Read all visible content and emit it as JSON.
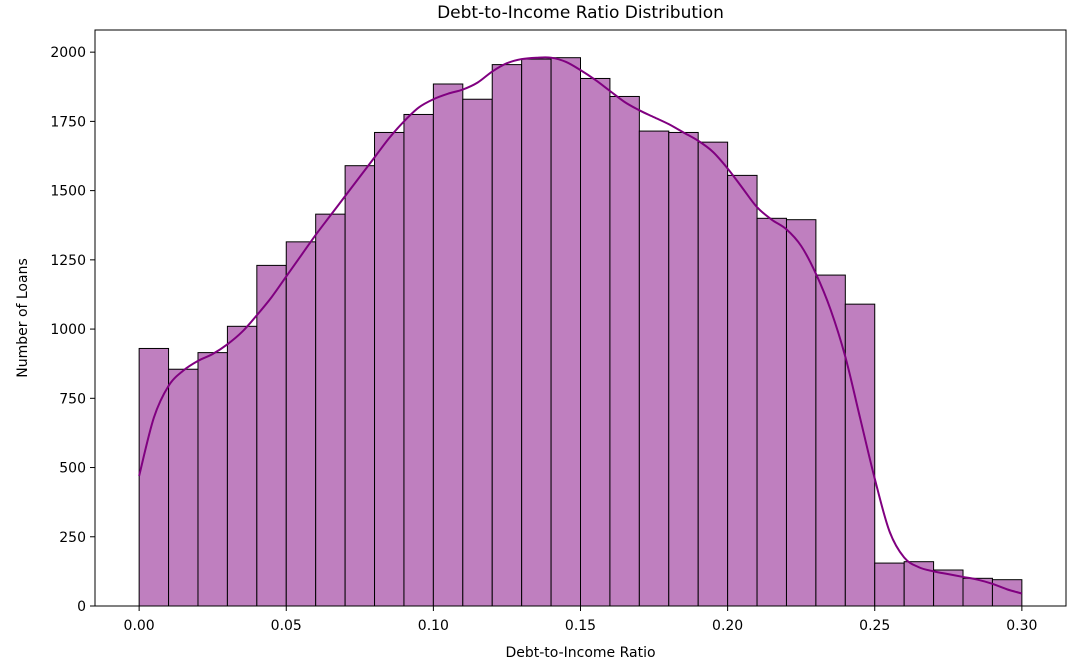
{
  "chart_data": {
    "type": "bar",
    "title": "Debt-to-Income Ratio Distribution",
    "xlabel": "Debt-to-Income Ratio",
    "ylabel": "Number of Loans",
    "xlim": [
      -0.015,
      0.315
    ],
    "ylim": [
      0,
      2080
    ],
    "xticks": [
      0.0,
      0.05,
      0.1,
      0.15,
      0.2,
      0.25,
      0.3
    ],
    "xtick_labels": [
      "0.00",
      "0.05",
      "0.10",
      "0.15",
      "0.20",
      "0.25",
      "0.30"
    ],
    "yticks": [
      0,
      250,
      500,
      750,
      1000,
      1250,
      1500,
      1750,
      2000
    ],
    "ytick_labels": [
      "0",
      "250",
      "500",
      "750",
      "1000",
      "1250",
      "1500",
      "1750",
      "2000"
    ],
    "grid": false,
    "bar_fill": "#bf7fbf",
    "bar_edge": "#000000",
    "kde_color": "#800080",
    "bins": [
      {
        "x0": 0.0,
        "x1": 0.01,
        "count": 930
      },
      {
        "x0": 0.01,
        "x1": 0.02,
        "count": 855
      },
      {
        "x0": 0.02,
        "x1": 0.03,
        "count": 915
      },
      {
        "x0": 0.03,
        "x1": 0.04,
        "count": 1010
      },
      {
        "x0": 0.04,
        "x1": 0.05,
        "count": 1230
      },
      {
        "x0": 0.05,
        "x1": 0.06,
        "count": 1315
      },
      {
        "x0": 0.06,
        "x1": 0.07,
        "count": 1415
      },
      {
        "x0": 0.07,
        "x1": 0.08,
        "count": 1590
      },
      {
        "x0": 0.08,
        "x1": 0.09,
        "count": 1710
      },
      {
        "x0": 0.09,
        "x1": 0.1,
        "count": 1775
      },
      {
        "x0": 0.1,
        "x1": 0.11,
        "count": 1885
      },
      {
        "x0": 0.11,
        "x1": 0.12,
        "count": 1830
      },
      {
        "x0": 0.12,
        "x1": 0.13,
        "count": 1955
      },
      {
        "x0": 0.13,
        "x1": 0.14,
        "count": 1975
      },
      {
        "x0": 0.14,
        "x1": 0.15,
        "count": 1980
      },
      {
        "x0": 0.15,
        "x1": 0.16,
        "count": 1905
      },
      {
        "x0": 0.16,
        "x1": 0.17,
        "count": 1840
      },
      {
        "x0": 0.17,
        "x1": 0.18,
        "count": 1715
      },
      {
        "x0": 0.18,
        "x1": 0.19,
        "count": 1710
      },
      {
        "x0": 0.19,
        "x1": 0.2,
        "count": 1675
      },
      {
        "x0": 0.2,
        "x1": 0.21,
        "count": 1555
      },
      {
        "x0": 0.21,
        "x1": 0.22,
        "count": 1400
      },
      {
        "x0": 0.22,
        "x1": 0.23,
        "count": 1395
      },
      {
        "x0": 0.23,
        "x1": 0.24,
        "count": 1195
      },
      {
        "x0": 0.24,
        "x1": 0.25,
        "count": 1090
      },
      {
        "x0": 0.25,
        "x1": 0.26,
        "count": 155
      },
      {
        "x0": 0.26,
        "x1": 0.27,
        "count": 160
      },
      {
        "x0": 0.27,
        "x1": 0.28,
        "count": 130
      },
      {
        "x0": 0.28,
        "x1": 0.29,
        "count": 100
      },
      {
        "x0": 0.29,
        "x1": 0.3,
        "count": 95
      }
    ],
    "kde": {
      "x": [
        0.0,
        0.005,
        0.01,
        0.015,
        0.02,
        0.025,
        0.03,
        0.035,
        0.04,
        0.045,
        0.05,
        0.055,
        0.06,
        0.065,
        0.07,
        0.075,
        0.08,
        0.085,
        0.09,
        0.095,
        0.1,
        0.105,
        0.11,
        0.115,
        0.12,
        0.125,
        0.13,
        0.135,
        0.14,
        0.145,
        0.15,
        0.155,
        0.16,
        0.165,
        0.17,
        0.175,
        0.18,
        0.185,
        0.19,
        0.195,
        0.2,
        0.205,
        0.21,
        0.215,
        0.22,
        0.225,
        0.23,
        0.235,
        0.24,
        0.245,
        0.25,
        0.255,
        0.26,
        0.265,
        0.27,
        0.275,
        0.28,
        0.285,
        0.29,
        0.295,
        0.3
      ],
      "y": [
        470,
        680,
        795,
        850,
        885,
        910,
        945,
        990,
        1050,
        1115,
        1190,
        1265,
        1340,
        1410,
        1480,
        1550,
        1620,
        1690,
        1750,
        1800,
        1830,
        1850,
        1865,
        1890,
        1930,
        1960,
        1975,
        1980,
        1980,
        1965,
        1935,
        1900,
        1860,
        1820,
        1790,
        1765,
        1740,
        1710,
        1680,
        1640,
        1580,
        1510,
        1440,
        1395,
        1360,
        1300,
        1200,
        1070,
        900,
        680,
        460,
        270,
        175,
        140,
        125,
        115,
        105,
        95,
        80,
        60,
        45
      ]
    }
  }
}
